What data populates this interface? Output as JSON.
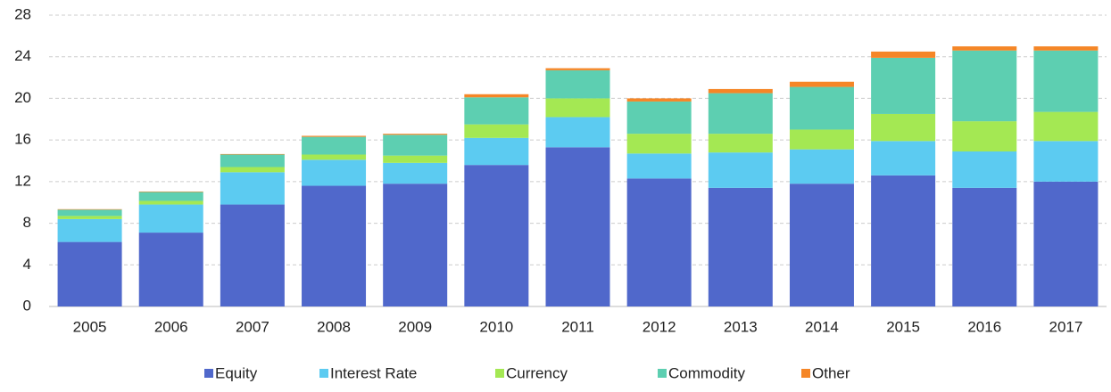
{
  "chart_data": {
    "type": "stacked_bar",
    "categories": [
      "2005",
      "2006",
      "2007",
      "2008",
      "2009",
      "2010",
      "2011",
      "2012",
      "2013",
      "2014",
      "2015",
      "2016",
      "2017"
    ],
    "series": [
      {
        "name": "Equity",
        "color": "#5068cb",
        "values": [
          6.2,
          7.1,
          9.8,
          11.6,
          11.8,
          13.6,
          15.3,
          12.3,
          11.4,
          11.8,
          12.6,
          11.4,
          12.0
        ]
      },
      {
        "name": "Interest Rate",
        "color": "#5ccbf1",
        "values": [
          2.2,
          2.7,
          3.1,
          2.5,
          2.0,
          2.6,
          2.9,
          2.4,
          3.4,
          3.3,
          3.3,
          3.5,
          3.9
        ]
      },
      {
        "name": "Currency",
        "color": "#a4e853",
        "values": [
          0.3,
          0.35,
          0.5,
          0.5,
          0.7,
          1.3,
          1.8,
          1.9,
          1.8,
          1.9,
          2.6,
          2.9,
          2.8
        ]
      },
      {
        "name": "Commodity",
        "color": "#5dcfb1",
        "values": [
          0.6,
          0.85,
          1.2,
          1.7,
          2.0,
          2.6,
          2.7,
          3.1,
          3.9,
          4.1,
          5.4,
          6.8,
          5.9
        ]
      },
      {
        "name": "Other",
        "color": "#f58627",
        "values": [
          0.05,
          0.05,
          0.05,
          0.1,
          0.1,
          0.3,
          0.2,
          0.3,
          0.4,
          0.5,
          0.6,
          0.4,
          0.4
        ]
      }
    ],
    "ylim": [
      0,
      28
    ],
    "yticks": [
      0,
      4,
      8,
      12,
      16,
      20,
      24,
      28
    ],
    "grid": true,
    "legend": "bottom"
  }
}
